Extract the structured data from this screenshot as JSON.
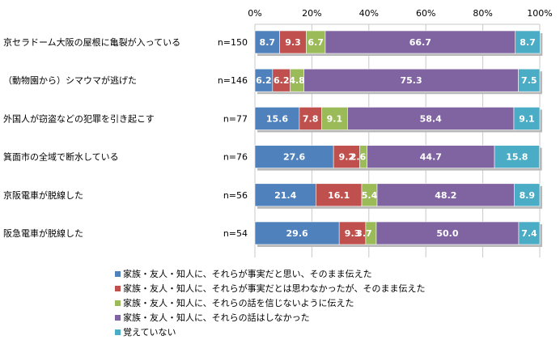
{
  "chart_data": {
    "type": "bar",
    "orientation": "horizontal",
    "stacked": true,
    "percent": true,
    "xlim": [
      0,
      100
    ],
    "ticks": [
      "0%",
      "20%",
      "40%",
      "60%",
      "80%",
      "100%"
    ],
    "grid": "vertical",
    "legend_position": "bottom",
    "categories": [
      "京セラドーム大阪の屋根に亀裂が入っている",
      "（動物園から）シマウマが逃げた",
      "外国人が窃盗などの犯罪を引き起こす",
      "箕面市の全域で断水している",
      "京阪電車が脱線した",
      "阪急電車が脱線した"
    ],
    "n_labels": [
      "n=150",
      "n=146",
      "n=77",
      "n=76",
      "n=56",
      "n=54"
    ],
    "series": [
      {
        "name": "家族・友人・知人に、それらが事実だと思い、そのまま伝えた",
        "color": "#4f81bd",
        "values": [
          8.7,
          6.2,
          15.6,
          27.6,
          21.4,
          29.6
        ]
      },
      {
        "name": "家族・友人・知人に、それらが事実だとは思わなかったが、そのまま伝えた",
        "color": "#c0504d",
        "values": [
          9.3,
          6.2,
          7.8,
          9.2,
          16.1,
          9.3
        ]
      },
      {
        "name": "家族・友人・知人に、それらの話を信じないように伝えた",
        "color": "#9bbb59",
        "values": [
          6.7,
          4.8,
          9.1,
          2.6,
          5.4,
          3.7
        ]
      },
      {
        "name": "家族・友人・知人に、それらの話はしなかった",
        "color": "#8064a2",
        "values": [
          66.7,
          75.3,
          58.4,
          44.7,
          48.2,
          50.0
        ]
      },
      {
        "name": "覚えていない",
        "color": "#4bacc6",
        "values": [
          8.7,
          7.5,
          9.1,
          15.8,
          8.9,
          7.4
        ]
      }
    ],
    "data_labels": [
      [
        "8.7",
        "9.3",
        "6.7",
        "66.7",
        "8.7"
      ],
      [
        "6.2",
        "6.2",
        "4.8",
        "75.3",
        "7.5"
      ],
      [
        "15.6",
        "7.8",
        "9.1",
        "58.4",
        "9.1"
      ],
      [
        "27.6",
        "9.2",
        "2.6",
        "44.7",
        "15.8"
      ],
      [
        "21.4",
        "16.1",
        "5.4",
        "48.2",
        "8.9"
      ],
      [
        "29.6",
        "9.3",
        "3.7",
        "50.0",
        "7.4"
      ]
    ]
  }
}
